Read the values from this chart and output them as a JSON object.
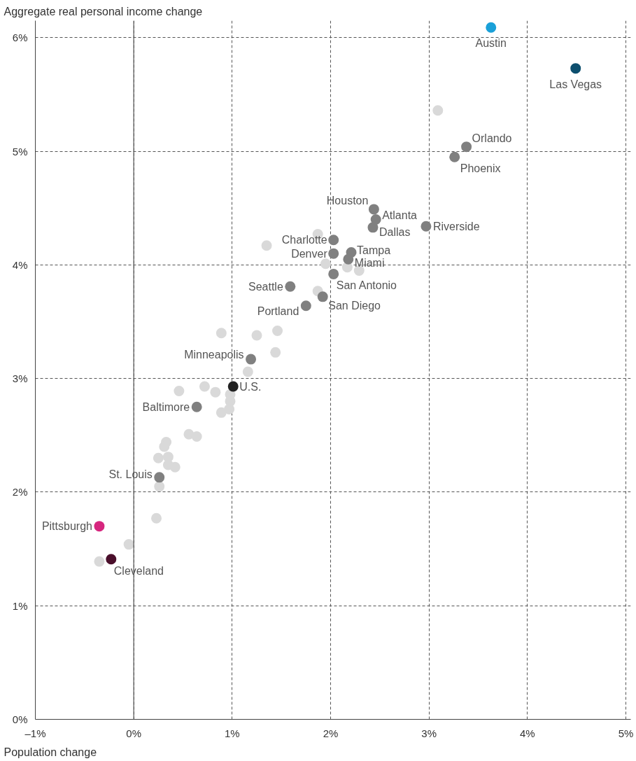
{
  "chart_data": {
    "type": "scatter",
    "xlabel": "Population change",
    "ylabel": "Aggregate real personal income change",
    "xlim": [
      -1,
      5.05
    ],
    "ylim": [
      0,
      6.15
    ],
    "xticks": [
      {
        "value": -1,
        "label": "–1%"
      },
      {
        "value": 0,
        "label": "0%"
      },
      {
        "value": 1,
        "label": "1%"
      },
      {
        "value": 2,
        "label": "2%"
      },
      {
        "value": 3,
        "label": "3%"
      },
      {
        "value": 4,
        "label": "4%"
      },
      {
        "value": 5,
        "label": "5%"
      }
    ],
    "yticks": [
      {
        "value": 0,
        "label": "0%"
      },
      {
        "value": 1,
        "label": "1%"
      },
      {
        "value": 2,
        "label": "2%"
      },
      {
        "value": 3,
        "label": "3%"
      },
      {
        "value": 4,
        "label": "4%"
      },
      {
        "value": 5,
        "label": "5%"
      },
      {
        "value": 6,
        "label": "6%"
      }
    ],
    "grid": true,
    "marker": "circle",
    "ref_lines": [
      {
        "axis": "x",
        "value": 0,
        "color": "#555555"
      }
    ],
    "series": [
      {
        "color": "#d9d9d9",
        "x": [
          3.09,
          1.35,
          1.87,
          1.95,
          2.17,
          2.29,
          1.87,
          0.89,
          1.46,
          1.25,
          1.44,
          1.16,
          0.72,
          0.46,
          0.83,
          0.98,
          0.98,
          0.97,
          0.89,
          0.33,
          0.31,
          0.56,
          0.64,
          0.25,
          0.35,
          0.35,
          0.42,
          0.26,
          0.23,
          -0.05,
          -0.35
        ],
        "values": [
          5.36,
          4.17,
          4.27,
          4.01,
          3.98,
          3.95,
          3.77,
          3.4,
          3.42,
          3.38,
          3.23,
          3.06,
          2.93,
          2.89,
          2.88,
          2.86,
          2.8,
          2.73,
          2.7,
          2.44,
          2.4,
          2.51,
          2.49,
          2.3,
          2.31,
          2.24,
          2.22,
          2.05,
          1.77,
          1.54,
          1.39
        ]
      },
      {
        "color": "#808080",
        "x": [
          3.38,
          3.26,
          2.44,
          2.46,
          2.43,
          2.97,
          2.03,
          2.03,
          2.21,
          2.18,
          2.03,
          1.59,
          1.92,
          1.75,
          1.19,
          0.64,
          0.26
        ],
        "values": [
          5.04,
          4.95,
          4.49,
          4.4,
          4.33,
          4.34,
          4.22,
          4.1,
          4.11,
          4.05,
          3.92,
          3.81,
          3.72,
          3.64,
          3.17,
          2.75,
          2.13
        ]
      },
      {
        "color": "#1aa0d8",
        "x": [
          3.63
        ],
        "values": [
          6.09
        ]
      },
      {
        "color": "#0d4f6e",
        "x": [
          4.49
        ],
        "values": [
          5.73
        ]
      },
      {
        "color": "#222222",
        "x": [
          1.01
        ],
        "values": [
          2.93
        ]
      },
      {
        "color": "#d6267e",
        "x": [
          -0.35
        ],
        "values": [
          1.7
        ]
      },
      {
        "color": "#4a0f2b",
        "x": [
          -0.23
        ],
        "values": [
          1.41
        ]
      }
    ],
    "annotations": [
      {
        "text": "Austin",
        "x": 3.63,
        "y": 6.09
      },
      {
        "text": "Las Vegas",
        "x": 4.49,
        "y": 5.73
      },
      {
        "text": "Orlando",
        "x": 3.38,
        "y": 5.04
      },
      {
        "text": "Phoenix",
        "x": 3.26,
        "y": 4.95
      },
      {
        "text": "Houston",
        "x": 2.44,
        "y": 4.49
      },
      {
        "text": "Atlanta",
        "x": 2.46,
        "y": 4.4
      },
      {
        "text": "Dallas",
        "x": 2.43,
        "y": 4.33
      },
      {
        "text": "Riverside",
        "x": 2.97,
        "y": 4.34
      },
      {
        "text": "Charlotte",
        "x": 2.03,
        "y": 4.22
      },
      {
        "text": "Denver",
        "x": 2.03,
        "y": 4.1
      },
      {
        "text": "Tampa",
        "x": 2.21,
        "y": 4.11
      },
      {
        "text": "Miami",
        "x": 2.18,
        "y": 4.05
      },
      {
        "text": "San Antonio",
        "x": 2.03,
        "y": 3.92
      },
      {
        "text": "Seattle",
        "x": 1.59,
        "y": 3.81
      },
      {
        "text": "San Diego",
        "x": 1.92,
        "y": 3.72
      },
      {
        "text": "Portland",
        "x": 1.75,
        "y": 3.64
      },
      {
        "text": "Minneapolis",
        "x": 1.19,
        "y": 3.17
      },
      {
        "text": "U.S.",
        "x": 1.01,
        "y": 2.93
      },
      {
        "text": "Baltimore",
        "x": 0.64,
        "y": 2.75
      },
      {
        "text": "St. Louis",
        "x": 0.26,
        "y": 2.13
      },
      {
        "text": "Pittsburgh",
        "x": -0.35,
        "y": 1.7
      },
      {
        "text": "Cleveland",
        "x": -0.23,
        "y": 1.41
      }
    ]
  }
}
